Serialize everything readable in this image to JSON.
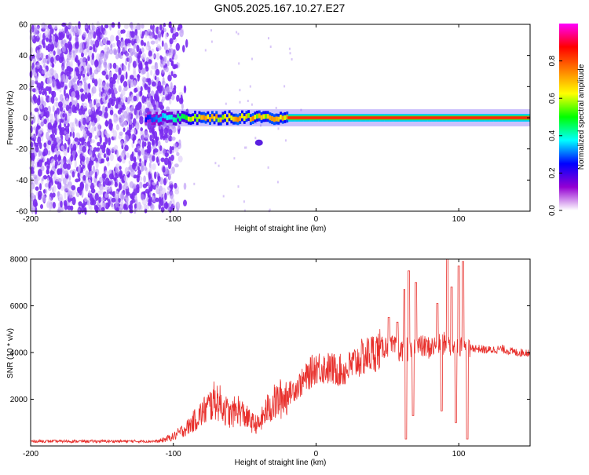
{
  "title": "GN05.2025.167.10.27.E27",
  "chart_data": [
    {
      "type": "heatmap",
      "xlabel": "Height of straight line (km)",
      "ylabel": "Frequency (Hz)",
      "xlim": [
        -200,
        150
      ],
      "ylim": [
        -60,
        60
      ],
      "xticks": [
        -200,
        -100,
        0,
        100
      ],
      "yticks": [
        -60,
        -40,
        -20,
        0,
        20,
        40,
        60
      ],
      "colorbar": {
        "label": "Normalized spectral amplitude",
        "range": [
          0,
          1
        ],
        "ticks": [
          0.0,
          0.2,
          0.4,
          0.6,
          0.8
        ],
        "tick_labels": [
          "0.0",
          "0.2",
          "0.4",
          "0.6",
          "0.8"
        ],
        "colormap": [
          "#ffffff",
          "#9400d3",
          "#0000ff",
          "#00ffff",
          "#00ff00",
          "#ffff00",
          "#ff7f00",
          "#ff0000",
          "#ff00ff"
        ]
      },
      "features": {
        "noise_region_x": [
          -200,
          -90
        ],
        "noise_dense_until_x": -105,
        "signal_band_start_x": -120,
        "signal_frequency_hz": 0,
        "signal_band_halfwidth_hz": 2.5,
        "side_blob": {
          "x": -40,
          "y": -16
        }
      }
    },
    {
      "type": "line",
      "xlabel": "Height of straight line (km)",
      "ylabel": "SNR (10 * v/v)",
      "xlim": [
        -200,
        150
      ],
      "ylim": [
        0,
        8000
      ],
      "xticks": [
        -200,
        -100,
        0,
        100
      ],
      "yticks": [
        2000,
        4000,
        6000,
        8000
      ],
      "series": [
        {
          "color": "#e8302c",
          "envelope_x": [
            -200,
            -110,
            -100,
            -90,
            -80,
            -70,
            -60,
            -55,
            -50,
            -45,
            -40,
            -35,
            -30,
            -20,
            -10,
            0,
            10,
            20,
            30,
            40,
            50,
            55,
            60,
            62,
            65,
            70,
            80,
            90,
            95,
            100,
            105,
            110,
            120,
            130,
            140,
            150
          ],
          "envelope_y": [
            200,
            200,
            400,
            800,
            1400,
            2000,
            1300,
            1600,
            1300,
            1000,
            900,
            1500,
            1800,
            2200,
            2700,
            3400,
            3300,
            3200,
            3700,
            4000,
            4300,
            4200,
            4000,
            4500,
            3900,
            4300,
            4200,
            4400,
            4200,
            4300,
            4100,
            4200,
            4100,
            4150,
            4000,
            4000
          ],
          "spikes": [
            {
              "x": 51,
              "y": 5500
            },
            {
              "x": 57,
              "y": 5300
            },
            {
              "x": 62,
              "y": 6700
            },
            {
              "x": 65,
              "y": 7500
            },
            {
              "x": 63,
              "y": 300
            },
            {
              "x": 68,
              "y": 1300
            },
            {
              "x": 70,
              "y": 7000
            },
            {
              "x": 85,
              "y": 6100
            },
            {
              "x": 88,
              "y": 1500
            },
            {
              "x": 92,
              "y": 8000
            },
            {
              "x": 95,
              "y": 6800
            },
            {
              "x": 98,
              "y": 1000
            },
            {
              "x": 100,
              "y": 7700
            },
            {
              "x": 103,
              "y": 7900
            },
            {
              "x": 106,
              "y": 300
            }
          ]
        }
      ]
    }
  ]
}
